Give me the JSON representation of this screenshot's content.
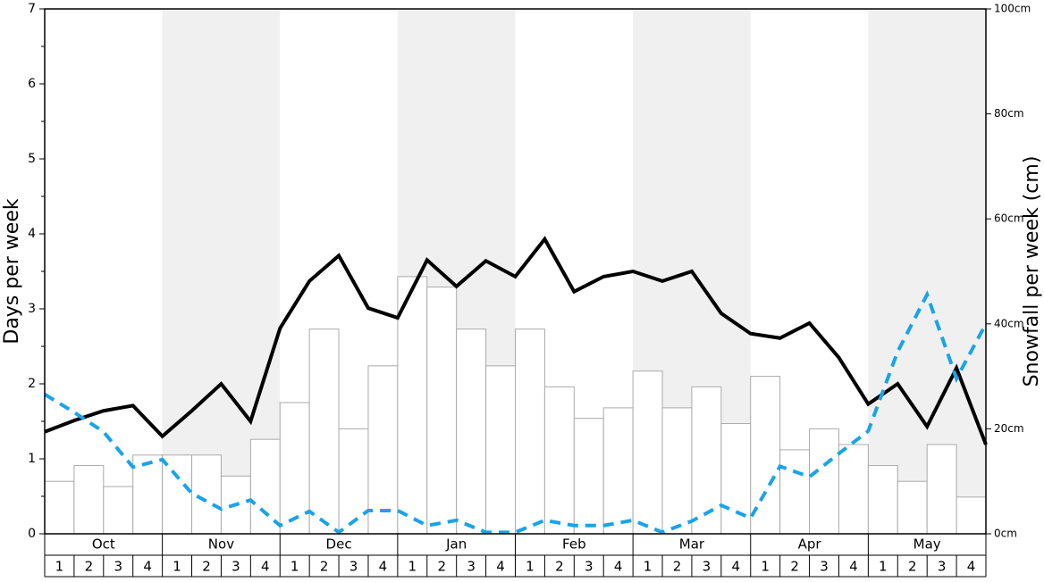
{
  "chart_data": {
    "type": "bar",
    "y_label": "Days per week",
    "y2_label": "Snowfall per week (cm)",
    "months": [
      "Oct",
      "Nov",
      "Dec",
      "Jan",
      "Feb",
      "Mar",
      "Apr",
      "May"
    ],
    "week_labels": [
      1,
      2,
      3,
      4
    ],
    "ylim": [
      0,
      7
    ],
    "yticks": [
      0,
      1,
      2,
      3,
      4,
      5,
      6,
      7
    ],
    "yminor_ticks": [
      0.5,
      1.5,
      2.5,
      3.5,
      4.5,
      5.5,
      6.5
    ],
    "y2lim": [
      0,
      100
    ],
    "y2ticks": [
      {
        "value": 0,
        "label": "0cm"
      },
      {
        "value": 20,
        "label": "20cm"
      },
      {
        "value": 40,
        "label": "40cm"
      },
      {
        "value": 60,
        "label": "60cm"
      },
      {
        "value": 80,
        "label": "80cm"
      },
      {
        "value": 100,
        "label": "100cm"
      }
    ],
    "series": [
      {
        "type": "bar",
        "axis": "y2",
        "color": "#ffffff",
        "values": [
          10,
          13,
          9,
          15,
          15,
          15,
          11,
          18,
          25,
          39,
          20,
          32,
          49,
          47,
          39,
          32,
          39,
          28,
          22,
          24,
          31,
          24,
          28,
          21,
          30,
          16,
          20,
          17,
          13,
          10,
          17,
          7
        ]
      },
      {
        "type": "line",
        "color": "#000000",
        "dash": false,
        "values": [
          1.36,
          1.51,
          1.64,
          1.71,
          1.3,
          1.64,
          2.0,
          1.5,
          2.74,
          3.37,
          3.71,
          3.01,
          2.88,
          3.65,
          3.3,
          3.64,
          3.43,
          3.93,
          3.23,
          3.43,
          3.5,
          3.37,
          3.5,
          2.94,
          2.67,
          2.61,
          2.81,
          2.35,
          1.73,
          2.0,
          1.43,
          2.21,
          1.19
        ]
      },
      {
        "type": "line",
        "color": "#1aa3e8",
        "dash": true,
        "values": [
          1.86,
          1.62,
          1.36,
          0.89,
          0.99,
          0.54,
          0.33,
          0.45,
          0.11,
          0.3,
          0.02,
          0.31,
          0.31,
          0.11,
          0.18,
          0.02,
          0.02,
          0.18,
          0.11,
          0.11,
          0.18,
          0.02,
          0.17,
          0.38,
          0.21,
          0.9,
          0.76,
          1.07,
          1.37,
          2.43,
          3.19,
          2.07,
          2.8
        ]
      }
    ]
  }
}
